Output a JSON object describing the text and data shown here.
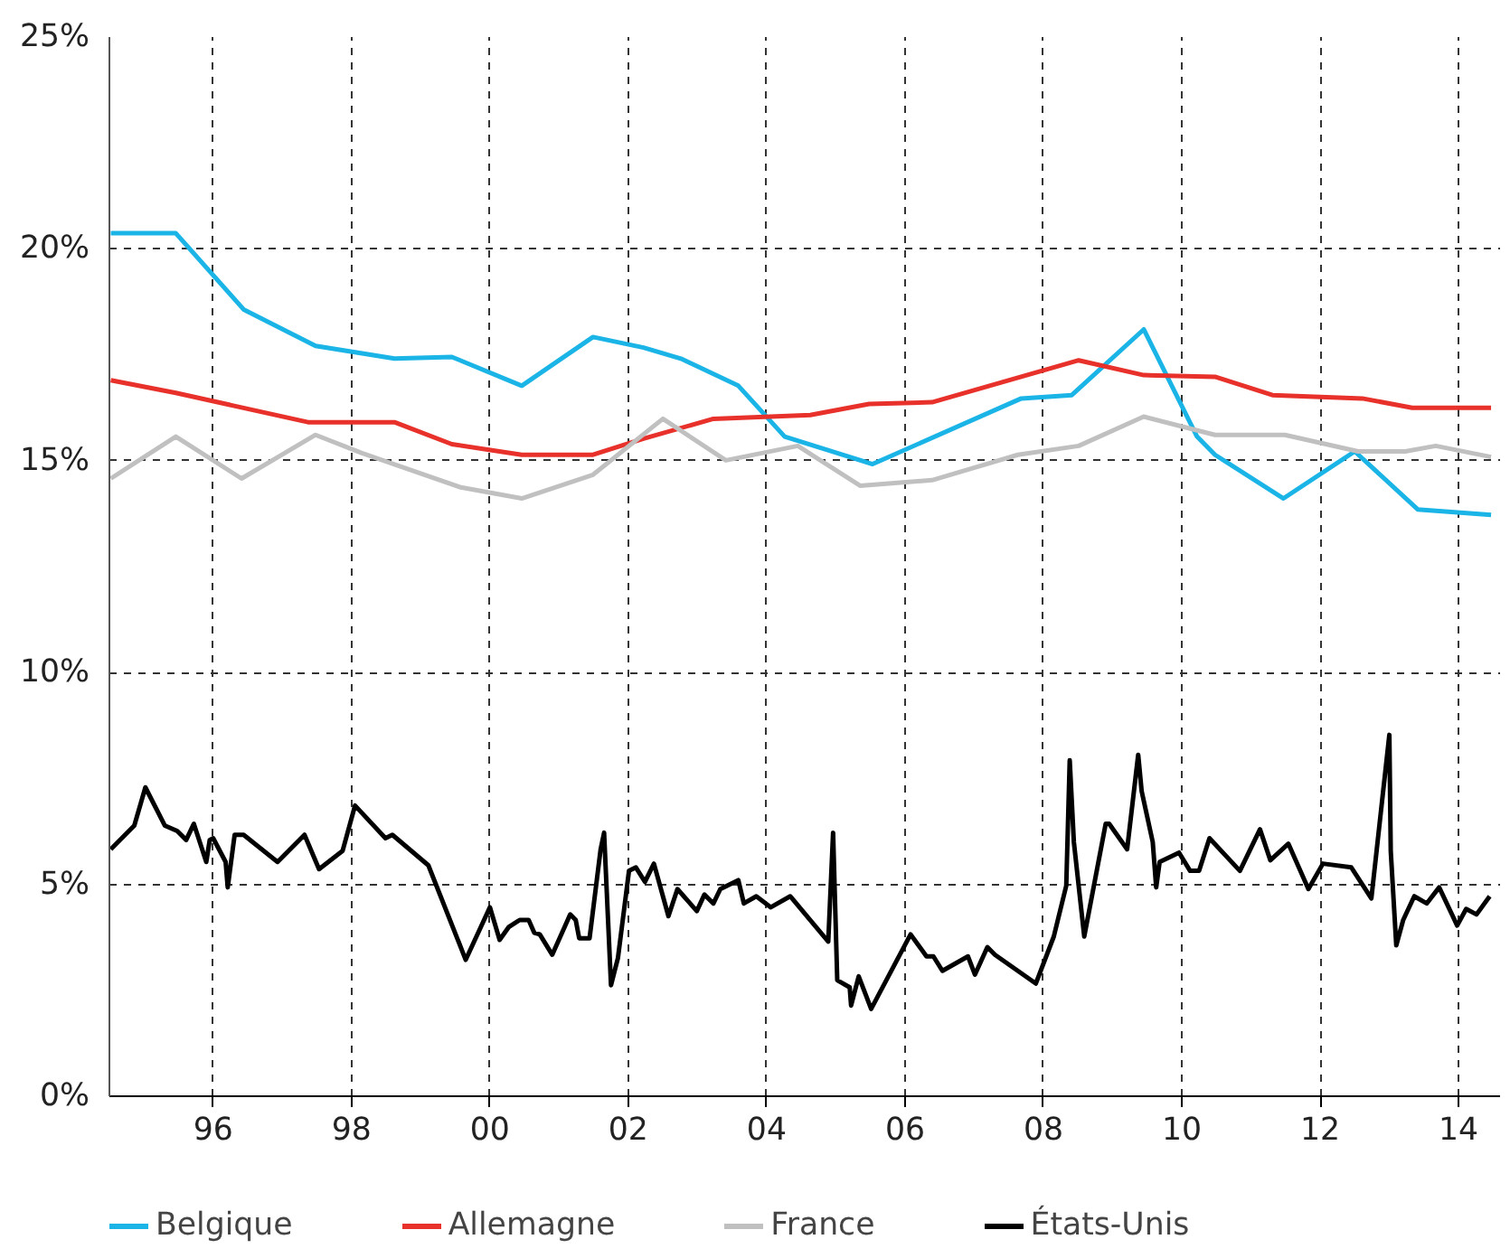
{
  "chart_data": {
    "type": "line",
    "xlim": [
      1994.5,
      2014.6
    ],
    "ylim": [
      0,
      25
    ],
    "xticks": [
      {
        "value": 1996,
        "label": "96"
      },
      {
        "value": 1998,
        "label": "98"
      },
      {
        "value": 2000,
        "label": "00"
      },
      {
        "value": 2002,
        "label": "02"
      },
      {
        "value": 2004,
        "label": "04"
      },
      {
        "value": 2006,
        "label": "06"
      },
      {
        "value": 2008,
        "label": "08"
      },
      {
        "value": 2010,
        "label": "10"
      },
      {
        "value": 2012,
        "label": "12"
      },
      {
        "value": 2014,
        "label": "14"
      }
    ],
    "yticks": [
      {
        "value": 0,
        "label": "0%"
      },
      {
        "value": 5,
        "label": "5%"
      },
      {
        "value": 10,
        "label": "10%"
      },
      {
        "value": 15,
        "label": "15%"
      },
      {
        "value": 20,
        "label": "20%"
      },
      {
        "value": 25,
        "label": "25%"
      }
    ],
    "grid": true,
    "legend": "bottom",
    "line_style": "solid",
    "series": [
      {
        "name": "Belgique",
        "color": "#1ab4e6",
        "x": [
          1994.52,
          1995.46,
          1996.44,
          1997.48,
          1998.62,
          1999.45,
          2000.46,
          2001.49,
          2002.22,
          2002.76,
          2003.59,
          2004.26,
          2005.53,
          2007.68,
          2008.41,
          2009.45,
          2010.22,
          2010.48,
          2011.47,
          2012.5,
          2013.41,
          2014.47
        ],
        "values": [
          20.37,
          20.37,
          18.57,
          17.71,
          17.41,
          17.45,
          16.77,
          17.92,
          17.67,
          17.41,
          16.77,
          15.57,
          14.92,
          16.47,
          16.55,
          18.1,
          15.57,
          15.14,
          14.11,
          15.22,
          13.85,
          13.72
        ]
      },
      {
        "name": "Allemagne",
        "color": "#e8312a",
        "x": [
          1994.52,
          1995.46,
          1997.37,
          1998.62,
          1999.45,
          2000.46,
          2001.49,
          2002.22,
          2003.23,
          2004.63,
          2005.48,
          2006.39,
          2008.51,
          2009.45,
          2010.48,
          2011.31,
          2012.61,
          2013.33,
          2014.47
        ],
        "values": [
          16.9,
          16.6,
          15.91,
          15.91,
          15.39,
          15.14,
          15.14,
          15.52,
          15.99,
          16.08,
          16.34,
          16.38,
          17.37,
          17.02,
          16.98,
          16.55,
          16.47,
          16.25,
          16.25
        ]
      },
      {
        "name": "France",
        "color": "#c0c0c0",
        "x": [
          1994.52,
          1995.46,
          1996.41,
          1997.48,
          1998.15,
          1999.58,
          2000.46,
          2001.49,
          2002.5,
          2003.41,
          2004.45,
          2005.35,
          2006.39,
          2007.63,
          2008.51,
          2009.45,
          2010.48,
          2011.49,
          2012.55,
          2013.23,
          2013.67,
          2014.47
        ],
        "values": [
          14.58,
          15.57,
          14.58,
          15.61,
          15.18,
          14.37,
          14.11,
          14.67,
          15.99,
          15.01,
          15.35,
          14.41,
          14.54,
          15.14,
          15.35,
          16.04,
          15.61,
          15.61,
          15.22,
          15.22,
          15.35,
          15.09
        ]
      },
      {
        "name": "États-Unis",
        "color": "#000000",
        "x": [
          1994.52,
          1994.86,
          1995.02,
          1995.3,
          1995.48,
          1995.61,
          1995.72,
          1995.9,
          1995.95,
          1996.0,
          1996.18,
          1996.21,
          1996.31,
          1996.44,
          1996.93,
          1997.32,
          1997.53,
          1997.87,
          1998.05,
          1998.49,
          1998.59,
          1999.11,
          1999.65,
          2000.0,
          2000.14,
          2000.27,
          2000.43,
          2000.56,
          2000.64,
          2000.72,
          2000.9,
          2001.16,
          2001.24,
          2001.29,
          2001.44,
          2001.6,
          2001.65,
          2001.75,
          2001.85,
          2002.01,
          2002.11,
          2002.24,
          2002.37,
          2002.58,
          2002.71,
          2002.99,
          2003.1,
          2003.23,
          2003.33,
          2003.59,
          2003.67,
          2003.85,
          2004.06,
          2004.34,
          2004.89,
          2004.96,
          2005.02,
          2005.2,
          2005.22,
          2005.33,
          2005.51,
          2006.08,
          2006.31,
          2006.41,
          2006.54,
          2006.91,
          2007.01,
          2007.19,
          2007.3,
          2007.89,
          2008.15,
          2008.33,
          2008.38,
          2008.44,
          2008.59,
          2008.9,
          2008.95,
          2009.21,
          2009.37,
          2009.42,
          2009.58,
          2009.63,
          2009.68,
          2009.96,
          2010.12,
          2010.25,
          2010.4,
          2010.84,
          2011.13,
          2011.28,
          2011.54,
          2011.83,
          2012.04,
          2012.45,
          2012.74,
          2013.0,
          2013.02,
          2013.1,
          2013.2,
          2013.36,
          2013.54,
          2013.72,
          2013.98,
          2014.11,
          2014.26,
          2014.45
        ],
        "values": [
          5.83,
          6.39,
          7.29,
          6.39,
          6.26,
          6.05,
          6.43,
          5.53,
          6.05,
          6.09,
          5.53,
          4.93,
          6.17,
          6.17,
          5.53,
          6.17,
          5.36,
          5.79,
          6.86,
          6.09,
          6.17,
          5.45,
          3.22,
          4.46,
          3.69,
          3.99,
          4.16,
          4.16,
          3.86,
          3.82,
          3.34,
          4.29,
          4.16,
          3.73,
          3.73,
          5.83,
          6.22,
          2.62,
          3.26,
          5.32,
          5.4,
          5.06,
          5.49,
          4.25,
          4.89,
          4.37,
          4.76,
          4.55,
          4.89,
          5.1,
          4.55,
          4.72,
          4.46,
          4.72,
          3.65,
          6.22,
          2.74,
          2.57,
          2.14,
          2.83,
          2.06,
          3.82,
          3.3,
          3.3,
          2.96,
          3.3,
          2.87,
          3.52,
          3.34,
          2.66,
          3.77,
          4.97,
          7.93,
          6.0,
          3.77,
          6.43,
          6.43,
          5.83,
          8.06,
          7.2,
          6.0,
          4.93,
          5.53,
          5.75,
          5.32,
          5.32,
          6.09,
          5.32,
          6.3,
          5.57,
          5.96,
          4.89,
          5.49,
          5.4,
          4.67,
          8.53,
          5.79,
          3.56,
          4.16,
          4.72,
          4.55,
          4.93,
          4.03,
          4.42,
          4.29,
          4.72
        ]
      }
    ]
  }
}
